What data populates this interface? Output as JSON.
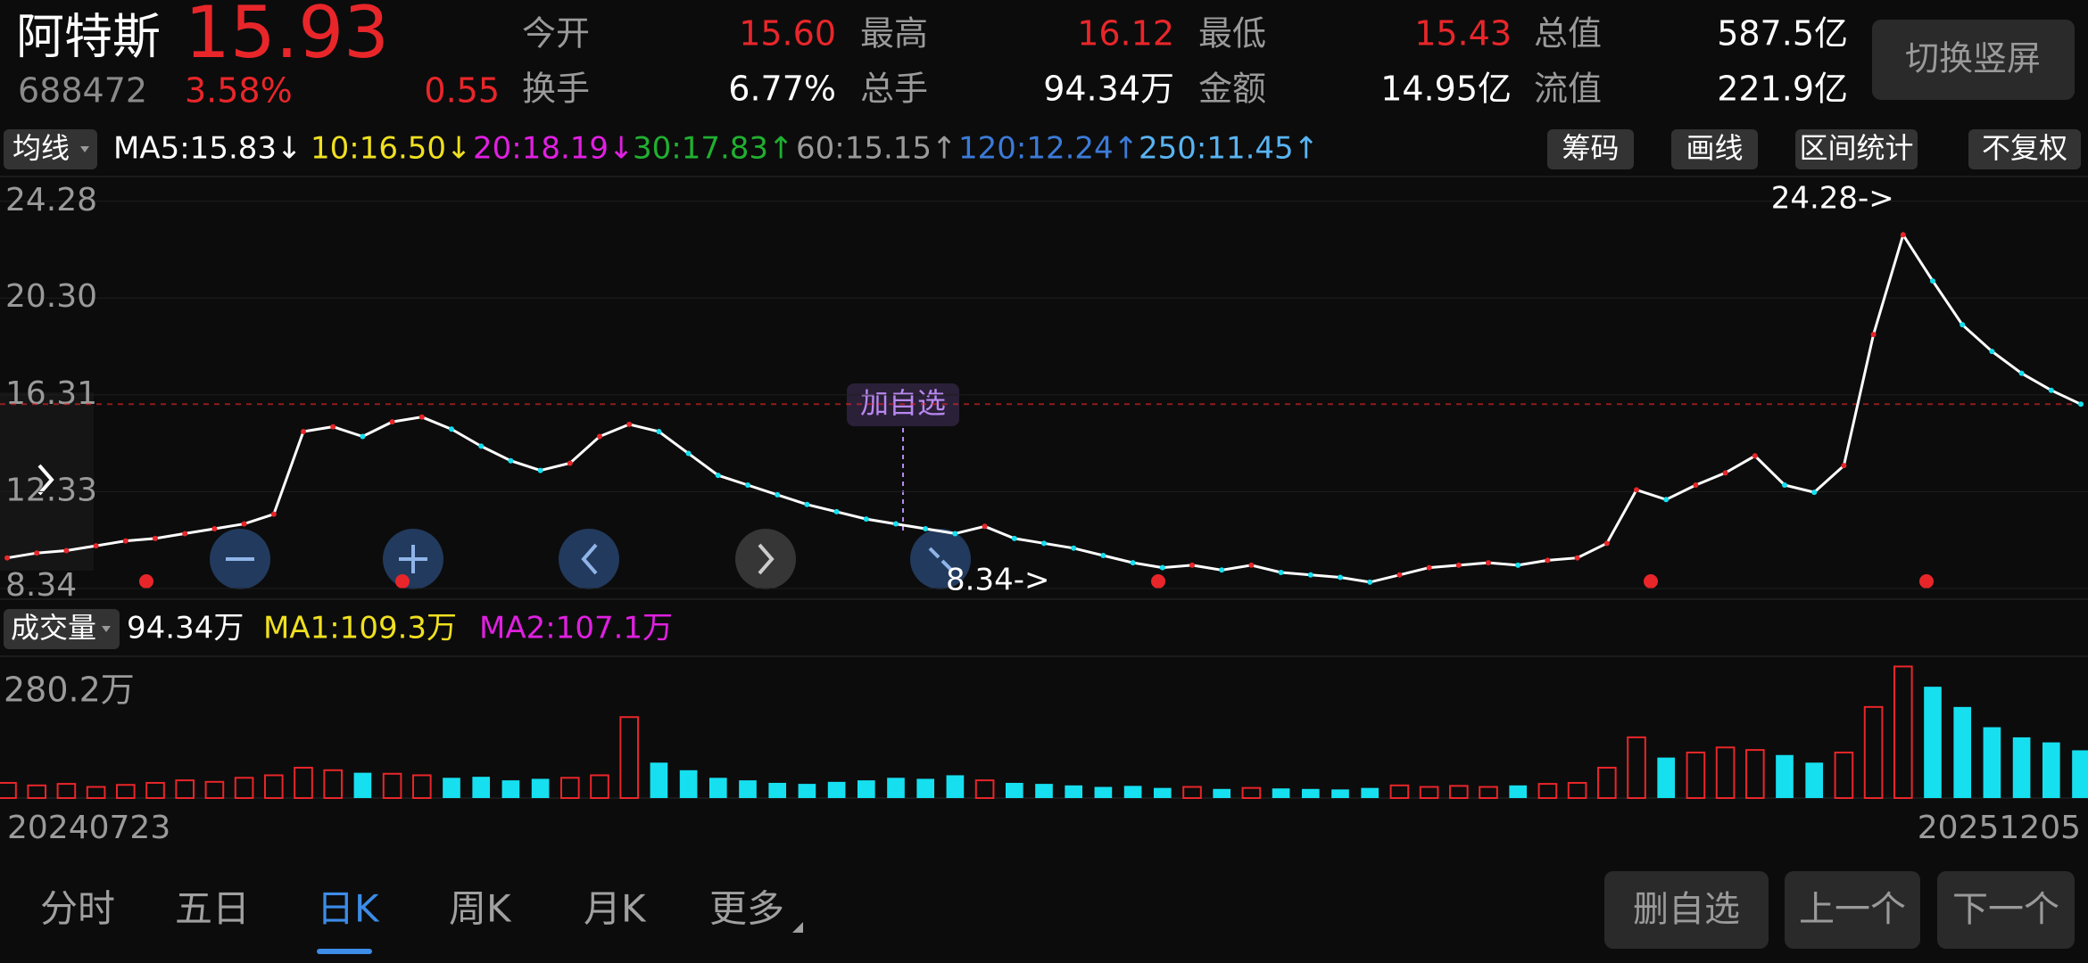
{
  "header": {
    "name": "阿特斯",
    "price": "15.93",
    "code": "688472",
    "change_pct": "3.58%",
    "change": "0.55",
    "stats": [
      {
        "label": "今开",
        "value": "15.60",
        "color": "#e8262a"
      },
      {
        "label": "最高",
        "value": "16.12",
        "color": "#e8262a"
      },
      {
        "label": "最低",
        "value": "15.43",
        "color": "#e8262a"
      },
      {
        "label": "总值",
        "value": "587.5亿",
        "color": "#ffffff"
      },
      {
        "label": "换手",
        "value": "6.77%",
        "color": "#ffffff"
      },
      {
        "label": "总手",
        "value": "94.34万",
        "color": "#ffffff"
      },
      {
        "label": "金额",
        "value": "14.95亿",
        "color": "#ffffff"
      },
      {
        "label": "流值",
        "value": "221.9亿",
        "color": "#ffffff"
      }
    ],
    "toggle_button": "切换竖屏"
  },
  "ma_bar": {
    "button": "均线",
    "items": [
      {
        "text": "MA5:15.83↓",
        "color": "#ffffff"
      },
      {
        "text": "10:16.50↓",
        "color": "#f0e020"
      },
      {
        "text": "20:18.19↓",
        "color": "#e020e0"
      },
      {
        "text": "30:17.83↑",
        "color": "#20b030"
      },
      {
        "text": "60:15.15↑",
        "color": "#9a9a9a"
      },
      {
        "text": "120:12.24↑",
        "color": "#3c7ad8"
      },
      {
        "text": "250:11.45↑",
        "color": "#59b4f2"
      }
    ],
    "tools": [
      "筹码",
      "画线",
      "区间统计",
      "不复权"
    ]
  },
  "price_chart": {
    "ylim": [
      7.9,
      25.3
    ],
    "yticks": [
      24.28,
      {
        "value": 20.3,
        "label": "20.30"
      },
      16.31,
      12.33,
      8.34
    ],
    "current": 15.93,
    "high_label": "24.28->",
    "low_label": "8.34->",
    "add_watch": "加自选",
    "close": [
      9.6,
      9.8,
      9.9,
      10.1,
      10.3,
      10.4,
      10.6,
      10.8,
      11.0,
      11.4,
      14.8,
      15.0,
      14.6,
      15.2,
      15.4,
      14.9,
      14.2,
      13.6,
      13.2,
      13.5,
      14.6,
      15.1,
      14.8,
      13.9,
      13.0,
      12.6,
      12.2,
      11.8,
      11.5,
      11.2,
      11.0,
      10.8,
      10.6,
      10.9,
      10.4,
      10.2,
      10.0,
      9.7,
      9.4,
      9.2,
      9.3,
      9.1,
      9.3,
      9.0,
      8.9,
      8.8,
      8.6,
      8.9,
      9.2,
      9.3,
      9.4,
      9.3,
      9.5,
      9.6,
      10.2,
      12.4,
      12.0,
      12.6,
      13.1,
      13.8,
      12.6,
      12.3,
      13.4,
      18.8,
      22.9,
      21.0,
      19.2,
      18.1,
      17.2,
      16.5,
      15.93
    ]
  },
  "volume_bar": {
    "button": "成交量",
    "items": [
      {
        "text": "94.34万",
        "color": "#ffffff"
      },
      {
        "text": "MA1:109.3万",
        "color": "#f0e020"
      },
      {
        "text": "MA2:107.1万",
        "color": "#e020e0"
      }
    ]
  },
  "volume_chart": {
    "max_label": "280.2万",
    "vlim": [
      0,
      280.2
    ],
    "values": [
      30,
      25,
      28,
      22,
      26,
      30,
      35,
      32,
      40,
      45,
      60,
      55,
      50,
      48,
      45,
      40,
      42,
      35,
      38,
      40,
      45,
      160,
      70,
      55,
      40,
      35,
      30,
      28,
      32,
      35,
      40,
      38,
      45,
      35,
      30,
      28,
      25,
      22,
      24,
      20,
      22,
      18,
      20,
      19,
      18,
      17,
      20,
      25,
      22,
      24,
      22,
      25,
      28,
      30,
      60,
      120,
      80,
      90,
      100,
      95,
      85,
      70,
      90,
      180,
      260,
      220,
      180,
      140,
      120,
      110,
      94.34
    ]
  },
  "dates": [
    "20240723",
    "20251205"
  ],
  "tabs": [
    "分时",
    "五日",
    "日K",
    "周K",
    "月K",
    "更多"
  ],
  "active_tab": 2,
  "actions": [
    "删自选",
    "上一个",
    "下一个"
  ]
}
